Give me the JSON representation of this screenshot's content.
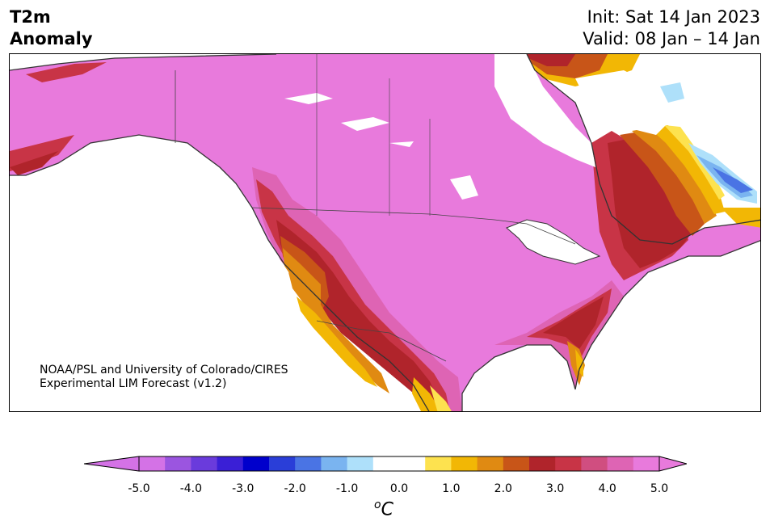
{
  "header": {
    "title_line1": "T2m",
    "title_line2": "Anomaly",
    "init": "Init: Sat 14 Jan 2023",
    "valid": "Valid: 08 Jan – 14 Jan"
  },
  "credit": {
    "line1": "NOAA/PSL and University of Colorado/CIRES",
    "line2": "Experimental LIM Forecast (v1.2)"
  },
  "colorbar": {
    "ticks": [
      "-5.0",
      "-4.0",
      "-3.0",
      "-2.0",
      "-1.0",
      "0.0",
      "1.0",
      "2.0",
      "3.0",
      "4.0",
      "5.0"
    ],
    "unit_base": "C",
    "unit_sup": "o",
    "colors": [
      "#d472e6",
      "#9b55e0",
      "#6a3bdc",
      "#3a1fd6",
      "#0000cc",
      "#2a3ed8",
      "#4a74e4",
      "#7ab4f0",
      "#aee0fa",
      "#ffffff",
      "#ffffff",
      "#fde24f",
      "#f2b705",
      "#e08a12",
      "#c85518",
      "#b0242b",
      "#c83446",
      "#d04e80",
      "#de64b4",
      "#e87adc"
    ],
    "extend_min_color": "#d472e6",
    "extend_max_color": "#e87adc"
  },
  "map": {
    "region": "North America",
    "warm_anomaly_max_color": "#e87adc",
    "cold_anomaly_color": "#4a74e4"
  }
}
